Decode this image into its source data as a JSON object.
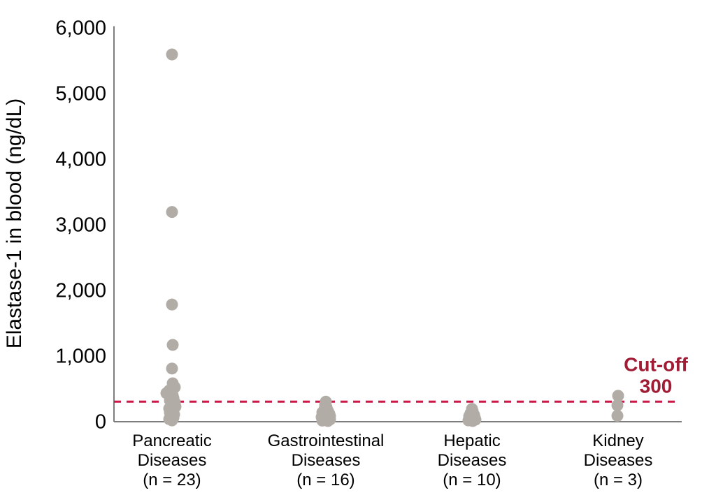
{
  "chart_data": {
    "type": "scatter",
    "title": "",
    "xlabel": "",
    "ylabel": "Elastase-1 in blood (ng/dL)",
    "ylim": [
      0,
      6000
    ],
    "yticks": [
      6000,
      5000,
      4000,
      3000,
      2000,
      1000,
      0
    ],
    "ytick_labels": [
      "6,000",
      "5,000",
      "4,000",
      "3,000",
      "2,000",
      "1,000",
      "0"
    ],
    "grid": false,
    "legend": "none",
    "dot_color": "#B2ACA7",
    "axis_color": "#7D7D7D",
    "tick_text_color": "#000000",
    "cutoff": {
      "value": 300,
      "label_line1": "Cut-off",
      "label_line2": "300",
      "line_color": "#CC1747",
      "text_color": "#A01C35"
    },
    "groups": [
      {
        "label_lines": [
          "Pancreatic",
          "Diseases",
          "(n = 23)"
        ],
        "n": 23,
        "values": [
          5590,
          3190,
          1780,
          1165,
          805,
          580,
          520,
          470,
          430,
          395,
          355,
          320,
          290,
          255,
          225,
          195,
          165,
          135,
          105,
          80,
          55,
          35,
          15
        ],
        "jitter": [
          0,
          0,
          0,
          1,
          0,
          1,
          4,
          -4,
          -8,
          1,
          2,
          -3,
          4,
          -1,
          5,
          -4,
          0,
          -3,
          3,
          -2,
          2,
          -4,
          0
        ]
      },
      {
        "label_lines": [
          "Gastrointestinal",
          "Diseases",
          "(n = 16)"
        ],
        "n": 16,
        "values": [
          300,
          250,
          215,
          185,
          160,
          135,
          115,
          95,
          80,
          65,
          50,
          40,
          30,
          20,
          12,
          5
        ],
        "jitter": [
          0,
          -1,
          1,
          -2,
          3,
          -5,
          5,
          -2,
          6,
          -6,
          2,
          -4,
          6,
          0,
          -5,
          3
        ]
      },
      {
        "label_lines": [
          "Hepatic",
          "Diseases",
          "(n = 10)"
        ],
        "n": 10,
        "values": [
          190,
          155,
          125,
          100,
          78,
          58,
          40,
          26,
          14,
          5
        ],
        "jitter": [
          0,
          1,
          -2,
          3,
          -4,
          4,
          -2,
          5,
          -5,
          1
        ]
      },
      {
        "label_lines": [
          "Kidney",
          "Diseases",
          "(n = 3)"
        ],
        "n": 3,
        "values": [
          390,
          245,
          85
        ],
        "jitter": [
          0,
          -1,
          -1
        ]
      }
    ]
  }
}
